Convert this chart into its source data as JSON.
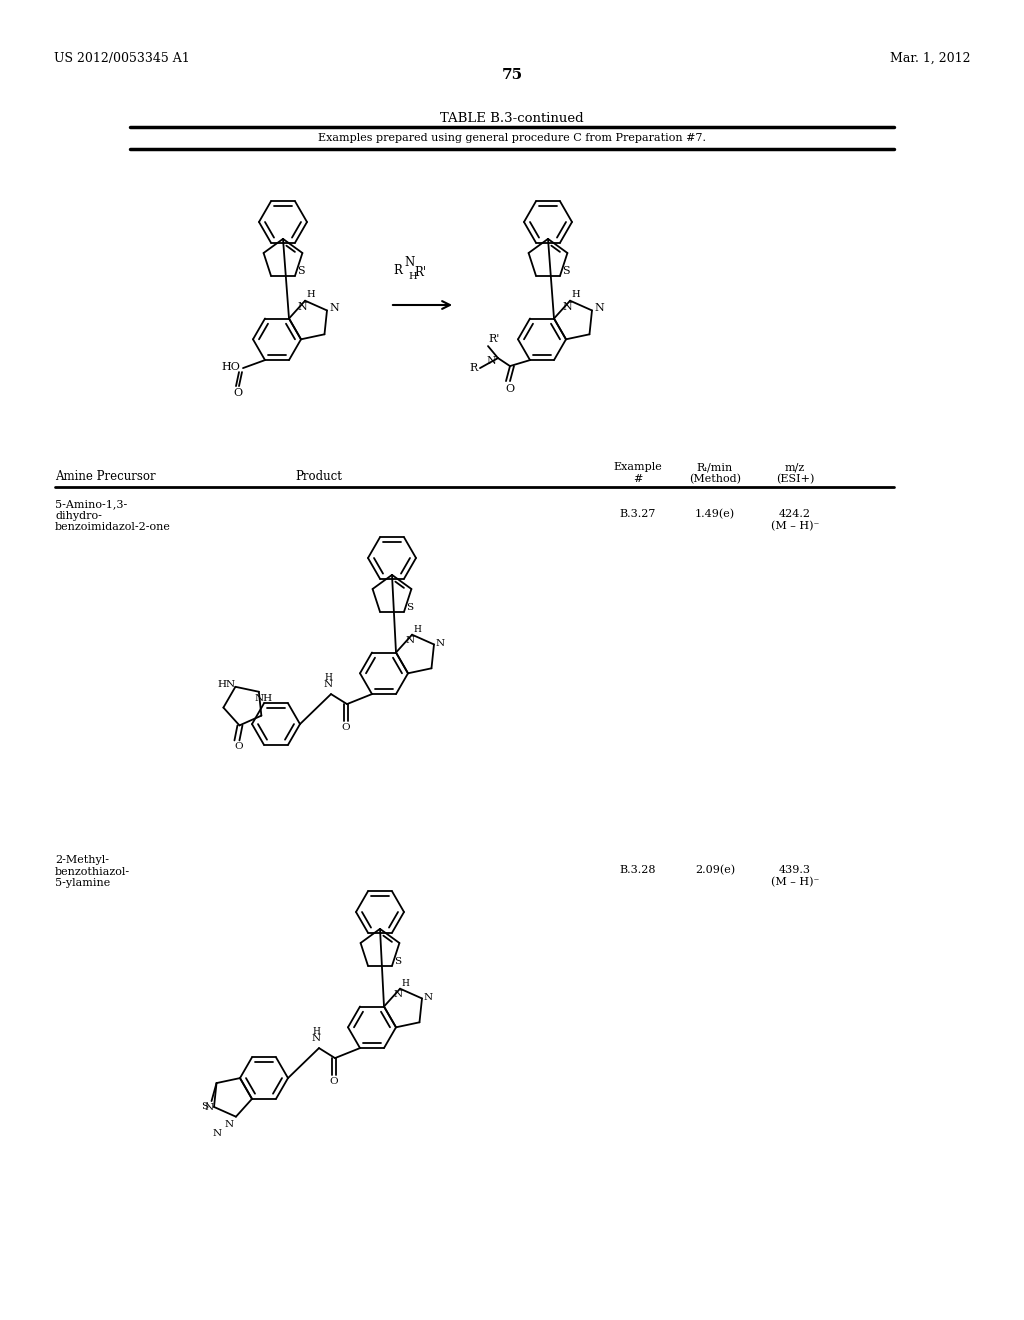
{
  "background_color": "#ffffff",
  "header_left": "US 2012/0053345 A1",
  "header_right": "Mar. 1, 2012",
  "page_number": "75",
  "table_title": "TABLE B.3-continued",
  "table_subtitle": "Examples prepared using general procedure C from Preparation #7.",
  "row1_amine": "5-Amino-1,3-\ndihydro-\nbenzoimidazol-2-one",
  "row1_example": "B.3.27",
  "row1_rt": "1.49(e)",
  "row1_mz1": "424.2",
  "row1_mz2": "(M – H)⁻",
  "row2_amine": "2-Methyl-\nbenzothiazol-\n5-ylamine",
  "row2_example": "B.3.28",
  "row2_rt": "2.09(e)",
  "row2_mz1": "439.3",
  "row2_mz2": "(M – H)⁻",
  "col1": "Amine Precursor",
  "col2": "Product",
  "col3a": "Example",
  "col3b": "#",
  "col4a": "Rₜ/min",
  "col4b": "(Method)",
  "col5a": "m/z",
  "col5b": "(ESI+)"
}
